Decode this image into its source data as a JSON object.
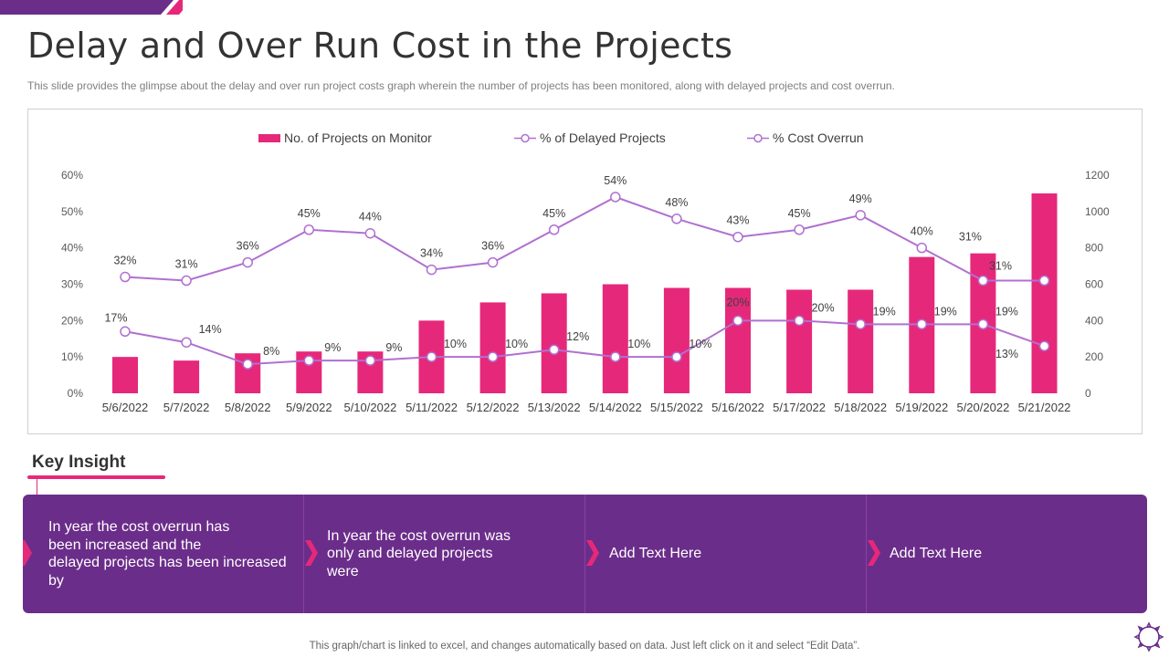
{
  "page": {
    "title": "Delay and Over Run Cost in the Projects",
    "subtitle": "This slide provides  the glimpse about the delay and over run project costs graph wherein the number of projects has been monitored,  along with delayed projects and cost overrun.",
    "footer": "This graph/chart is linked to excel,  and changes automatically based on data. Just left click on it and select “Edit Data”.",
    "key_insight_title": "Key Insight",
    "insights": [
      {
        "text": "In year            the cost overrun has\nbeen increased          and the\ndelayed projects has been increased\nby"
      },
      {
        "text": "In year           the cost overrun was\nonly       and delayed projects\nwere"
      },
      {
        "text": "Add Text Here"
      },
      {
        "text": "Add Text Here"
      }
    ]
  },
  "colors": {
    "bar": "#e6287a",
    "line": "#b070d0",
    "accent": "#e6287a",
    "panel": "#6b2d8a",
    "corner_purple": "#6b2d8a"
  },
  "icons": [
    "gear-icon",
    "chevron-right-icon"
  ],
  "chart_data": {
    "type": "bar",
    "categories": [
      "5/6/2022",
      "5/7/2022",
      "5/8/2022",
      "5/9/2022",
      "5/10/2022",
      "5/11/2022",
      "5/12/2022",
      "5/13/2022",
      "5/14/2022",
      "5/15/2022",
      "5/16/2022",
      "5/17/2022",
      "5/18/2022",
      "5/19/2022",
      "5/20/2022",
      "5/21/2022"
    ],
    "legend": [
      "No. of Projects on Monitor",
      "% of Delayed Projects",
      "% Cost Overrun"
    ],
    "legend_position": "top-center",
    "series": [
      {
        "name": "No. of Projects on Monitor",
        "type": "bar",
        "axis": "right",
        "values": [
          200,
          180,
          220,
          230,
          230,
          400,
          500,
          550,
          600,
          580,
          580,
          570,
          570,
          750,
          770,
          1100
        ]
      },
      {
        "name": "% of Delayed Projects",
        "type": "line",
        "axis": "left",
        "values": [
          32,
          31,
          36,
          45,
          44,
          34,
          36,
          45,
          54,
          48,
          43,
          45,
          49,
          40,
          31,
          31
        ],
        "labels": [
          "32%",
          "31%",
          "36%",
          "45%",
          "44%",
          "34%",
          "36%",
          "45%",
          "54%",
          "48%",
          "43%",
          "45%",
          "49%",
          "40%",
          "31%",
          "31%"
        ]
      },
      {
        "name": "% Cost Overrun",
        "type": "line",
        "axis": "left",
        "values": [
          17,
          14,
          8,
          9,
          9,
          10,
          10,
          12,
          10,
          10,
          20,
          20,
          19,
          19,
          19,
          13
        ],
        "labels": [
          "17%",
          "14%",
          "8%",
          "9%",
          "9%",
          "10%",
          "10%",
          "12%",
          "10%",
          "10%",
          "20%",
          "20%",
          "19%",
          "19%",
          "19%",
          "13%"
        ]
      }
    ],
    "y_left": {
      "min": 0,
      "max": 60,
      "ticks": [
        "0%",
        "10%",
        "20%",
        "30%",
        "40%",
        "50%",
        "60%"
      ]
    },
    "y_right": {
      "min": 0,
      "max": 1200,
      "ticks": [
        "0",
        "200",
        "400",
        "600",
        "800",
        "1000",
        "1200"
      ]
    },
    "grid": false
  }
}
